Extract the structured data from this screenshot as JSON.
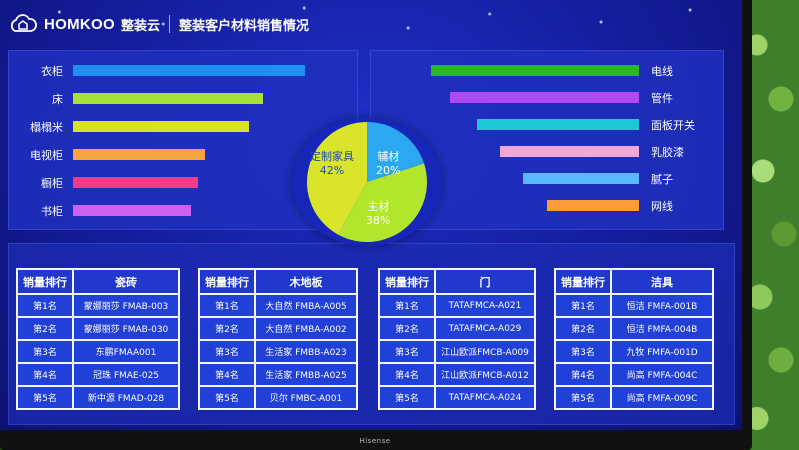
{
  "header": {
    "brand": "HOMKOO",
    "brand_cn": "整装云",
    "title": "整装客户材料销售情况"
  },
  "left_bars": [
    {
      "label": "衣柜",
      "value": 1.0,
      "color": "#1f8ff0"
    },
    {
      "label": "床",
      "value": 0.82,
      "color": "#a8e03a"
    },
    {
      "label": "榻榻米",
      "value": 0.76,
      "color": "#d6e22a"
    },
    {
      "label": "电视柜",
      "value": 0.57,
      "color": "#f5a440"
    },
    {
      "label": "橱柜",
      "value": 0.54,
      "color": "#f03a8a"
    },
    {
      "label": "书柜",
      "value": 0.51,
      "color": "#cc60f0"
    }
  ],
  "right_bars": [
    {
      "label": "电线",
      "value": 1.0,
      "color": "#2ab82a"
    },
    {
      "label": "管件",
      "value": 0.91,
      "color": "#b04af0"
    },
    {
      "label": "面板开关",
      "value": 0.78,
      "color": "#1cc8d8"
    },
    {
      "label": "乳胶漆",
      "value": 0.67,
      "color": "#f0a8d8"
    },
    {
      "label": "腻子",
      "value": 0.56,
      "color": "#5ab8ff"
    },
    {
      "label": "网线",
      "value": 0.44,
      "color": "#ff9a3a"
    }
  ],
  "pie": {
    "slices": [
      {
        "name": "定制家具",
        "pct": "42%",
        "value": 42,
        "color": "#d9e42a"
      },
      {
        "name": "辅材",
        "pct": "20%",
        "value": 20,
        "color": "#2aa8f0"
      },
      {
        "name": "主材",
        "pct": "38%",
        "value": 38,
        "color": "#b2e62c"
      }
    ]
  },
  "tables": [
    {
      "rank_header": "销量排行",
      "category": "瓷砖",
      "rows": [
        {
          "rank": "第1名",
          "product": "蒙娜丽莎 FMAB-003"
        },
        {
          "rank": "第2名",
          "product": "蒙娜丽莎 FMAB-030"
        },
        {
          "rank": "第3名",
          "product": "东鹏FMAA001"
        },
        {
          "rank": "第4名",
          "product": "冠珠 FMAE-025"
        },
        {
          "rank": "第5名",
          "product": "新中源 FMAD-028"
        }
      ]
    },
    {
      "rank_header": "销量排行",
      "category": "木地板",
      "rows": [
        {
          "rank": "第1名",
          "product": "大自然 FMBA-A005"
        },
        {
          "rank": "第2名",
          "product": "大自然 FMBA-A002"
        },
        {
          "rank": "第3名",
          "product": "生活家 FMBB-A023"
        },
        {
          "rank": "第4名",
          "product": "生活家 FMBB-A025"
        },
        {
          "rank": "第5名",
          "product": "贝尔 FMBC-A001"
        }
      ]
    },
    {
      "rank_header": "销量排行",
      "category": "门",
      "rows": [
        {
          "rank": "第1名",
          "product": "TATAFMCA-A021"
        },
        {
          "rank": "第2名",
          "product": "TATAFMCA-A029"
        },
        {
          "rank": "第3名",
          "product": "江山欧派FMCB-A009"
        },
        {
          "rank": "第4名",
          "product": "江山欧派FMCB-A012"
        },
        {
          "rank": "第5名",
          "product": "TATAFMCA-A024"
        }
      ]
    },
    {
      "rank_header": "销量排行",
      "category": "洁具",
      "rows": [
        {
          "rank": "第1名",
          "product": "恒洁 FMFA-001B"
        },
        {
          "rank": "第2名",
          "product": "恒洁 FMFA-004B"
        },
        {
          "rank": "第3名",
          "product": "九牧 FMFA-001D"
        },
        {
          "rank": "第4名",
          "product": "尚高 FMFA-004C"
        },
        {
          "rank": "第5名",
          "product": "尚高 FMFA-009C"
        }
      ]
    }
  ],
  "tv_brand": "Hisense"
}
